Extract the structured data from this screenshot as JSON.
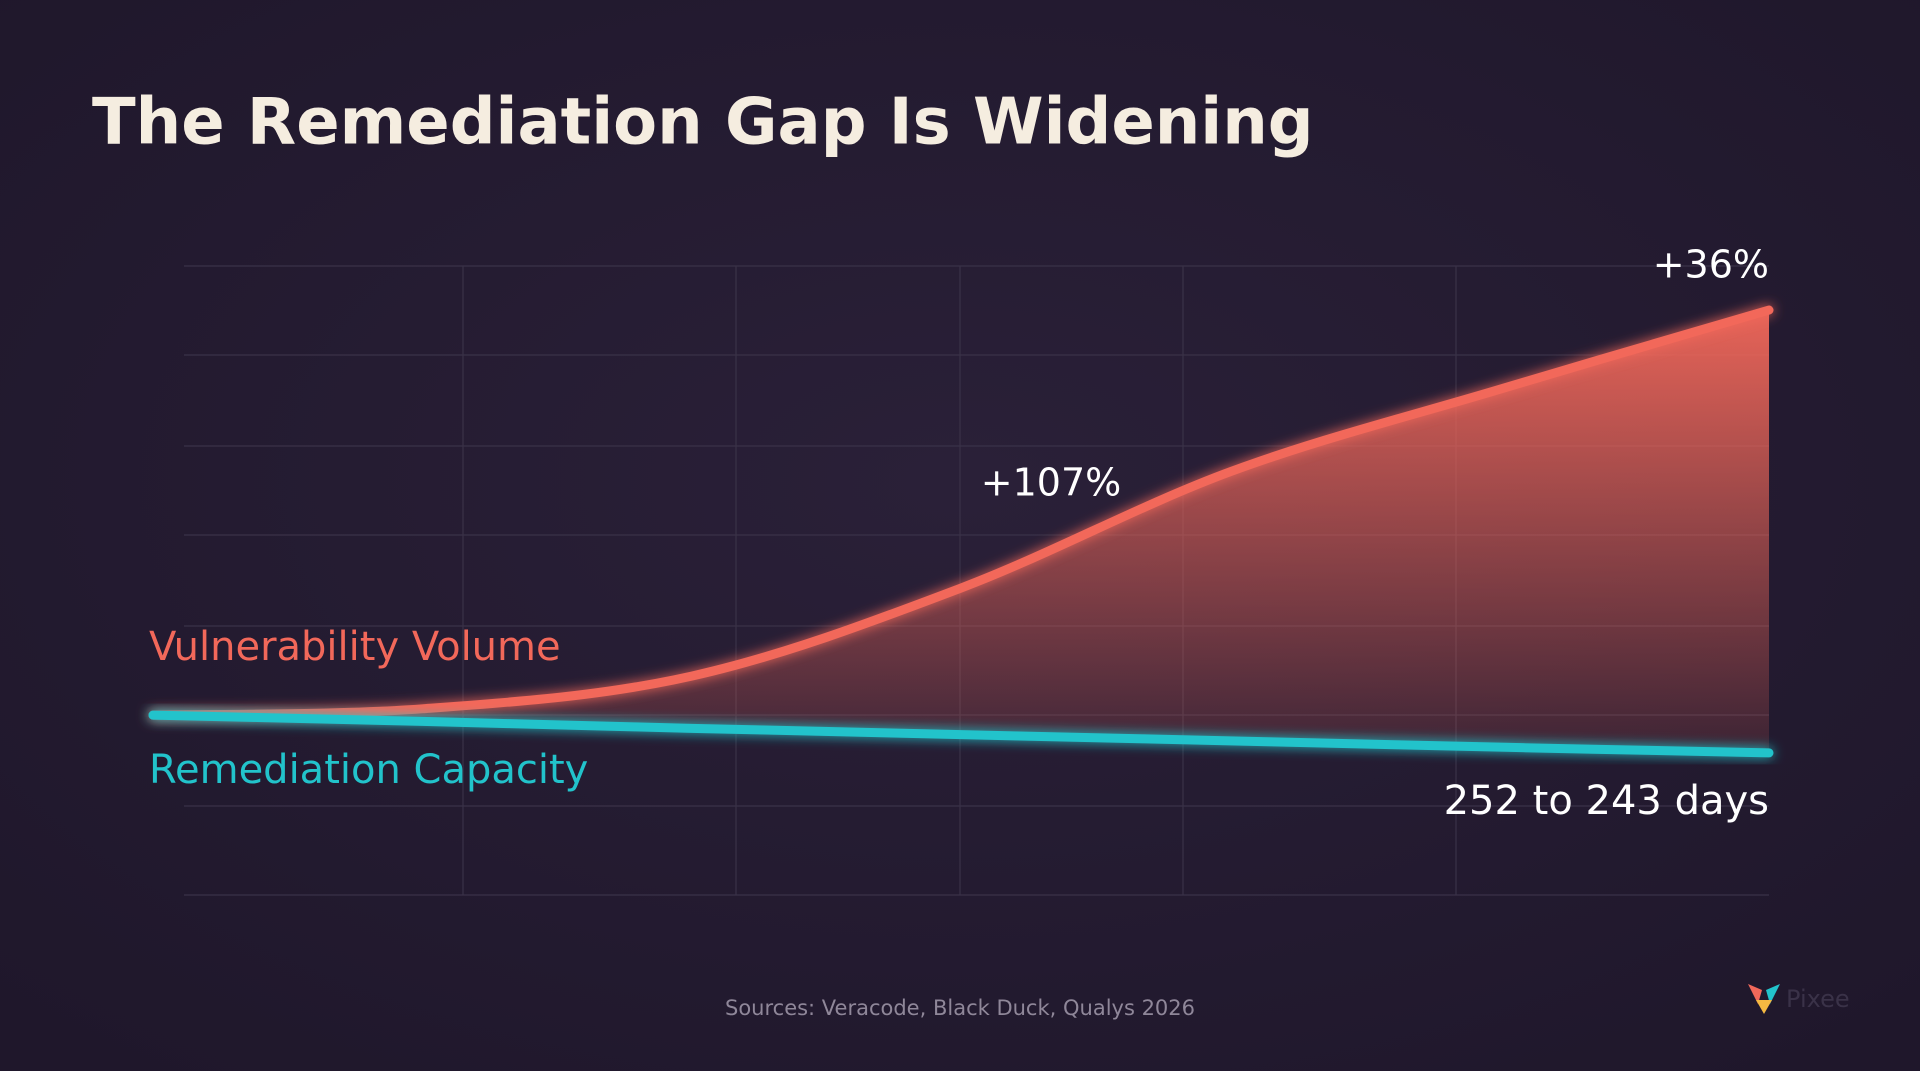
{
  "chart_data": {
    "type": "line",
    "title": "The Remediation Gap Is Widening",
    "categories": [
      null,
      null,
      null,
      null,
      null,
      null,
      null
    ],
    "series": [
      {
        "name": "Vulnerability Volume",
        "color": "#f2685a",
        "values": [
          28.6,
          29.6,
          34.8,
          48.8,
          67.3,
          80.4,
          93.0
        ]
      },
      {
        "name": "Remediation Capacity",
        "color": "#22c3cb",
        "values": [
          28.6,
          27.6,
          26.5,
          25.5,
          24.5,
          23.5,
          22.6
        ]
      }
    ],
    "ylim": [
      0,
      100
    ],
    "annotations": [
      "+36%",
      "+107%",
      "252 to 243 days"
    ],
    "source": "Sources: Veracode, Black Duck, Qualys 2026",
    "logo": "Pixee"
  }
}
